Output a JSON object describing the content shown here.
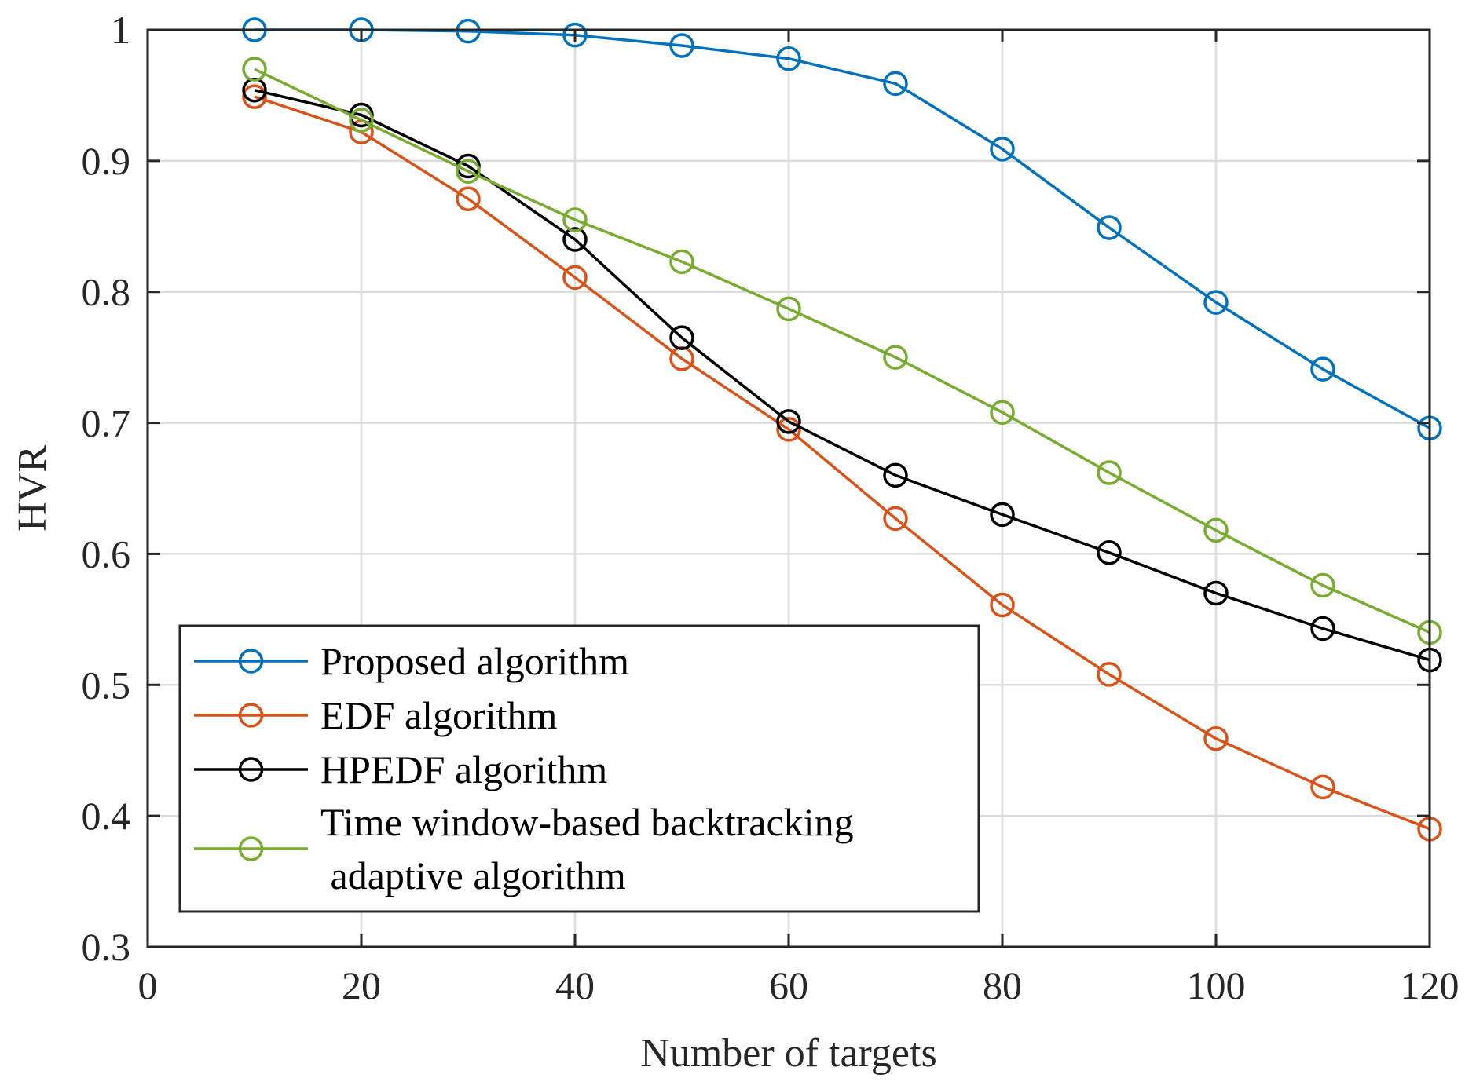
{
  "chart_data": {
    "type": "line",
    "title": "",
    "xlabel": "Number of targets",
    "ylabel": "HVR",
    "xlim": [
      0,
      120
    ],
    "ylim": [
      0.3,
      1
    ],
    "xticks": [
      0,
      20,
      40,
      60,
      80,
      100,
      120
    ],
    "yticks": [
      0.3,
      0.4,
      0.5,
      0.6,
      0.7,
      0.8,
      0.9,
      1
    ],
    "xtick_labels": [
      "0",
      "20",
      "40",
      "60",
      "80",
      "100",
      "120"
    ],
    "ytick_labels": [
      "0.3",
      "0.4",
      "0.5",
      "0.6",
      "0.7",
      "0.8",
      "0.9",
      "1"
    ],
    "grid": true,
    "legend_position": "bottom-left",
    "x": [
      10,
      20,
      30,
      40,
      50,
      60,
      70,
      80,
      90,
      100,
      110,
      120
    ],
    "series": [
      {
        "name": "Proposed algorithm",
        "legend_lines": [
          "Proposed algorithm"
        ],
        "color": "#0072BD",
        "values": [
          1.0,
          1.0,
          0.999,
          0.996,
          0.988,
          0.978,
          0.959,
          0.909,
          0.849,
          0.792,
          0.741,
          0.696
        ]
      },
      {
        "name": "EDF algorithm",
        "legend_lines": [
          "EDF algorithm"
        ],
        "color": "#D95319",
        "values": [
          0.949,
          0.922,
          0.871,
          0.811,
          0.749,
          0.695,
          0.627,
          0.561,
          0.508,
          0.459,
          0.422,
          0.39
        ]
      },
      {
        "name": "HPEDF algorithm",
        "legend_lines": [
          "HPEDF algorithm"
        ],
        "color": "#000000",
        "values": [
          0.954,
          0.935,
          0.896,
          0.84,
          0.765,
          0.701,
          0.66,
          0.63,
          0.601,
          0.57,
          0.543,
          0.519
        ]
      },
      {
        "name": "Time window-based backtracking adaptive algorithm",
        "legend_lines": [
          "Time window-based backtracking",
          " adaptive algorithm"
        ],
        "color": "#77AC30",
        "values": [
          0.97,
          0.931,
          0.892,
          0.855,
          0.823,
          0.787,
          0.75,
          0.708,
          0.662,
          0.618,
          0.576,
          0.54
        ]
      }
    ]
  }
}
